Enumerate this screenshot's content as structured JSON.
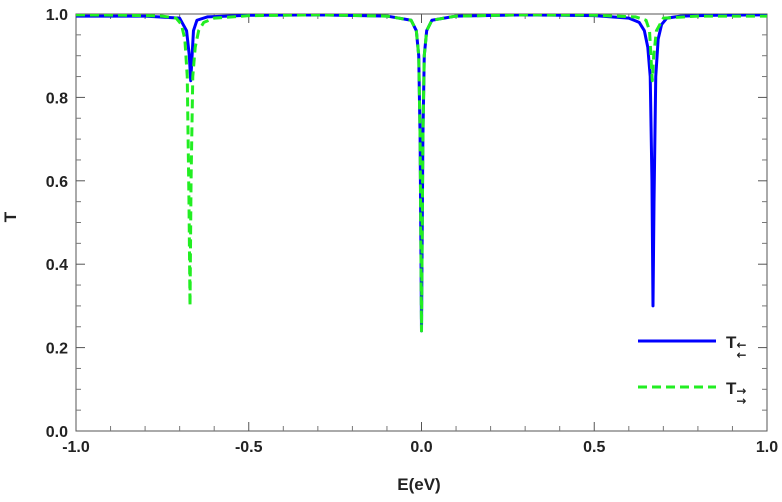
{
  "chart_data": {
    "type": "line",
    "title": "",
    "xlabel": "E(eV)",
    "ylabel": "T",
    "xlim": [
      -1.0,
      1.0
    ],
    "ylim": [
      0.0,
      1.0
    ],
    "xticks": [
      "-1.0",
      "-0.5",
      "0.0",
      "0.5",
      "1.0"
    ],
    "yticks": [
      "0.0",
      "0.2",
      "0.4",
      "0.6",
      "0.8",
      "1.0"
    ],
    "grid": false,
    "legend_position": "bottom-right",
    "series": [
      {
        "name": "T",
        "name_arrows": "↓↓",
        "color": "#0000ff",
        "style": "solid",
        "x": [
          -1.0,
          -0.8,
          -0.7,
          -0.68,
          -0.672,
          -0.668,
          -0.664,
          -0.66,
          -0.65,
          -0.62,
          -0.5,
          -0.3,
          -0.1,
          -0.03,
          -0.015,
          -0.008,
          -0.004,
          0.0,
          0.004,
          0.008,
          0.015,
          0.03,
          0.1,
          0.3,
          0.5,
          0.6,
          0.63,
          0.645,
          0.655,
          0.662,
          0.667,
          0.67,
          0.673,
          0.678,
          0.685,
          0.695,
          0.71,
          0.75,
          0.85,
          1.0
        ],
        "y": [
          0.995,
          0.995,
          0.99,
          0.96,
          0.9,
          0.84,
          0.9,
          0.96,
          0.985,
          0.993,
          0.997,
          0.998,
          0.995,
          0.985,
          0.96,
          0.9,
          0.7,
          0.24,
          0.7,
          0.9,
          0.96,
          0.985,
          0.995,
          0.998,
          0.996,
          0.99,
          0.98,
          0.96,
          0.92,
          0.85,
          0.6,
          0.3,
          0.55,
          0.85,
          0.94,
          0.975,
          0.99,
          0.995,
          0.997,
          0.998
        ]
      },
      {
        "name": "T",
        "name_arrows": "↑↑",
        "color": "#22ee22",
        "style": "dashed",
        "x": [
          -1.0,
          -0.85,
          -0.75,
          -0.71,
          -0.695,
          -0.685,
          -0.678,
          -0.673,
          -0.67,
          -0.667,
          -0.662,
          -0.655,
          -0.645,
          -0.63,
          -0.6,
          -0.5,
          -0.3,
          -0.1,
          -0.03,
          -0.015,
          -0.008,
          -0.004,
          0.0,
          0.004,
          0.008,
          0.015,
          0.03,
          0.1,
          0.3,
          0.5,
          0.62,
          0.65,
          0.66,
          0.664,
          0.668,
          0.672,
          0.68,
          0.7,
          0.8,
          1.0
        ],
        "y": [
          0.998,
          0.997,
          0.995,
          0.99,
          0.975,
          0.94,
          0.85,
          0.55,
          0.3,
          0.6,
          0.85,
          0.92,
          0.96,
          0.98,
          0.99,
          0.996,
          0.998,
          0.995,
          0.985,
          0.96,
          0.9,
          0.7,
          0.24,
          0.7,
          0.9,
          0.96,
          0.985,
          0.995,
          0.998,
          0.997,
          0.993,
          0.985,
          0.96,
          0.9,
          0.84,
          0.9,
          0.96,
          0.99,
          0.995,
          0.995
        ]
      }
    ]
  }
}
